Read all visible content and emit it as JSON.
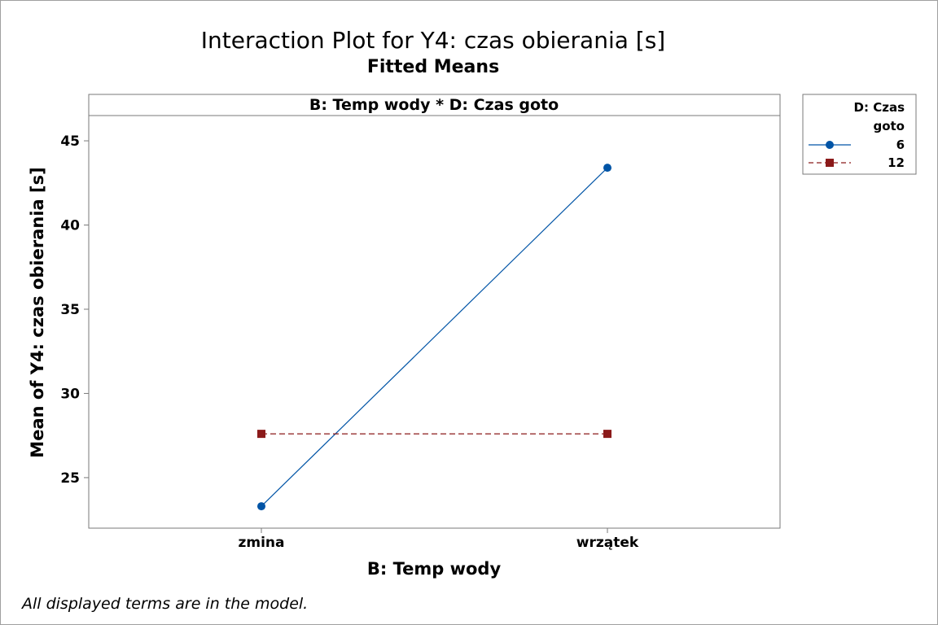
{
  "chart_data": {
    "type": "line",
    "title": "Interaction Plot for Y4: czas obierania [s]",
    "subtitle": "Fitted Means",
    "panel_label": "B: Temp wody * D: Czas goto",
    "xlabel": "B: Temp wody",
    "ylabel": "Mean of Y4: czas obierania [s]",
    "categories": [
      "zmina",
      "wrzątek"
    ],
    "ylim": [
      22,
      46.5
    ],
    "yticks": [
      "25",
      "30",
      "35",
      "40",
      "45"
    ],
    "grid": false,
    "legend": {
      "title_line1": "D: Czas",
      "title_line2": "goto",
      "placement": "right"
    },
    "series": [
      {
        "name": "6",
        "values": [
          23.3,
          43.4
        ],
        "color": "#0054a6",
        "marker": "circle",
        "dash": "solid"
      },
      {
        "name": "12",
        "values": [
          27.6,
          27.6
        ],
        "color": "#8b1a1a",
        "marker": "square",
        "dash": "dashed"
      }
    ],
    "footnote": "All displayed terms are in the model."
  }
}
